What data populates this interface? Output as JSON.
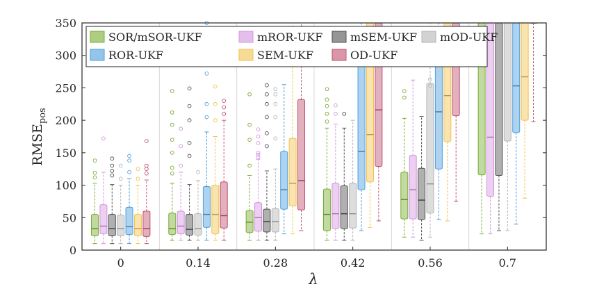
{
  "chart_data": {
    "type": "boxplot",
    "title": "",
    "xlabel": "λ",
    "ylabel": "RMSE",
    "ylabel_subscript": "pos",
    "ylim": [
      0,
      350
    ],
    "yticks": [
      "0",
      "50",
      "100",
      "150",
      "200",
      "250",
      "300",
      "350"
    ],
    "categories": [
      "0",
      "0.14",
      "0.28",
      "0.42",
      "0.56",
      "0.7"
    ],
    "legend_position": "top-left",
    "series": [
      {
        "name": "SOR/mSOR-UKF",
        "color": "#77ac30",
        "boxes": [
          {
            "whisker_low": 10,
            "q1": 22,
            "median": 33,
            "q3": 55,
            "whisker_high": 103,
            "outliers": [
              112,
              119,
              138
            ]
          },
          {
            "whisker_low": 15,
            "q1": 24,
            "median": 33,
            "q3": 57,
            "whisker_high": 103,
            "outliers": [
              118,
              127,
              150,
              170,
              193,
              212,
              245
            ]
          },
          {
            "whisker_low": 15,
            "q1": 27,
            "median": 43,
            "q3": 61,
            "whisker_high": 115,
            "outliers": [
              130,
              170,
              193,
              240
            ]
          },
          {
            "whisker_low": 15,
            "q1": 30,
            "median": 55,
            "q3": 94,
            "whisker_high": 188,
            "outliers": [
              198,
              210,
              222,
              232,
              248
            ]
          },
          {
            "whisker_low": 20,
            "q1": 48,
            "median": 78,
            "q3": 120,
            "whisker_high": 203,
            "outliers": [
              235,
              245
            ]
          },
          {
            "whisker_low": 25,
            "q1": 116,
            "median": 350,
            "q3": 350,
            "whisker_high": 350,
            "outliers": []
          }
        ]
      },
      {
        "name": "mROR-UKF",
        "color": "#d494e0",
        "boxes": [
          {
            "whisker_low": 10,
            "q1": 25,
            "median": 37,
            "q3": 70,
            "whisker_high": 120,
            "outliers": [
              172
            ]
          },
          {
            "whisker_low": 15,
            "q1": 25,
            "median": 37,
            "q3": 60,
            "whisker_high": 120,
            "outliers": [
              130,
              160,
              187
            ]
          },
          {
            "whisker_low": 15,
            "q1": 29,
            "median": 50,
            "q3": 73,
            "whisker_high": 140,
            "outliers": [
              143,
              147,
              150,
              165,
              175,
              186
            ]
          },
          {
            "whisker_low": 15,
            "q1": 33,
            "median": 56,
            "q3": 103,
            "whisker_high": 194,
            "outliers": [
              210,
              223
            ]
          },
          {
            "whisker_low": 20,
            "q1": 48,
            "median": 93,
            "q3": 146,
            "whisker_high": 262,
            "outliers": []
          },
          {
            "whisker_low": 25,
            "q1": 83,
            "median": 174,
            "q3": 350,
            "whisker_high": 350,
            "outliers": []
          }
        ]
      },
      {
        "name": "mSEM-UKF",
        "color": "#505050",
        "boxes": [
          {
            "whisker_low": 10,
            "q1": 22,
            "median": 33,
            "q3": 55,
            "whisker_high": 101,
            "outliers": [
              115,
              122,
              130,
              141
            ]
          },
          {
            "whisker_low": 15,
            "q1": 23,
            "median": 32,
            "q3": 55,
            "whisker_high": 101,
            "outliers": [
              145,
              165,
              200,
              222,
              249
            ]
          },
          {
            "whisker_low": 15,
            "q1": 28,
            "median": 44,
            "q3": 63,
            "whisker_high": 122,
            "outliers": [
              160,
              180,
              205,
              225,
              240,
              254
            ]
          },
          {
            "whisker_low": 15,
            "q1": 33,
            "median": 56,
            "q3": 99,
            "whisker_high": 188,
            "outliers": [
              210
            ]
          },
          {
            "whisker_low": 15,
            "q1": 47,
            "median": 77,
            "q3": 126,
            "whisker_high": 206,
            "outliers": []
          },
          {
            "whisker_low": 30,
            "q1": 115,
            "median": 350,
            "q3": 350,
            "whisker_high": 350,
            "outliers": []
          }
        ]
      },
      {
        "name": "mOD-UKF",
        "color": "#b4b4b4",
        "boxes": [
          {
            "whisker_low": 10,
            "q1": 22,
            "median": 33,
            "q3": 54,
            "whisker_high": 100,
            "outliers": [
              110,
              130
            ]
          },
          {
            "whisker_low": 15,
            "q1": 23,
            "median": 33,
            "q3": 56,
            "whisker_high": 107,
            "outliers": [
              120
            ]
          },
          {
            "whisker_low": 15,
            "q1": 28,
            "median": 44,
            "q3": 64,
            "whisker_high": 125,
            "outliers": [
              172,
              205,
              225,
              240,
              248
            ]
          },
          {
            "whisker_low": 15,
            "q1": 34,
            "median": 56,
            "q3": 103,
            "whisker_high": 200,
            "outliers": []
          },
          {
            "whisker_low": 20,
            "q1": 57,
            "median": 102,
            "q3": 257,
            "whisker_high": 350,
            "outliers": [
              253,
              263
            ]
          },
          {
            "whisker_low": 30,
            "q1": 168,
            "median": 350,
            "q3": 350,
            "whisker_high": 350,
            "outliers": []
          }
        ]
      },
      {
        "name": "ROR-UKF",
        "color": "#4b9ede",
        "boxes": [
          {
            "whisker_low": 10,
            "q1": 24,
            "median": 36,
            "q3": 66,
            "whisker_high": 110,
            "outliers": [
              120,
              138,
              145
            ]
          },
          {
            "whisker_low": 15,
            "q1": 35,
            "median": 55,
            "q3": 98,
            "whisker_high": 182,
            "outliers": [
              205,
              225,
              272,
              350
            ]
          },
          {
            "whisker_low": 25,
            "q1": 63,
            "median": 93,
            "q3": 152,
            "whisker_high": 255,
            "outliers": []
          },
          {
            "whisker_low": 30,
            "q1": 93,
            "median": 152,
            "q3": 294,
            "whisker_high": 350,
            "outliers": []
          },
          {
            "whisker_low": 47,
            "q1": 125,
            "median": 213,
            "q3": 294,
            "whisker_high": 350,
            "outliers": []
          },
          {
            "whisker_low": 40,
            "q1": 181,
            "median": 253,
            "q3": 350,
            "whisker_high": 350,
            "outliers": []
          }
        ]
      },
      {
        "name": "SEM-UKF",
        "color": "#f2c14e",
        "boxes": [
          {
            "whisker_low": 10,
            "q1": 22,
            "median": 33,
            "q3": 55,
            "whisker_high": 100,
            "outliers": [
              110,
              125
            ]
          },
          {
            "whisker_low": 15,
            "q1": 25,
            "median": 55,
            "q3": 100,
            "whisker_high": 175,
            "outliers": [
              200,
              225,
              252
            ]
          },
          {
            "whisker_low": 25,
            "q1": 68,
            "median": 103,
            "q3": 172,
            "whisker_high": 350,
            "outliers": []
          },
          {
            "whisker_low": 35,
            "q1": 105,
            "median": 178,
            "q3": 350,
            "whisker_high": 350,
            "outliers": []
          },
          {
            "whisker_low": 45,
            "q1": 167,
            "median": 238,
            "q3": 350,
            "whisker_high": 350,
            "outliers": []
          },
          {
            "whisker_low": 80,
            "q1": 200,
            "median": 267,
            "q3": 350,
            "whisker_high": 350,
            "outliers": []
          }
        ]
      },
      {
        "name": "OD-UKF",
        "color": "#c0506e",
        "boxes": [
          {
            "whisker_low": 10,
            "q1": 21,
            "median": 33,
            "q3": 60,
            "whisker_high": 108,
            "outliers": [
              118,
              125,
              130,
              168
            ]
          },
          {
            "whisker_low": 15,
            "q1": 34,
            "median": 53,
            "q3": 105,
            "whisker_high": 200,
            "outliers": [
              210,
              220,
              230,
              285
            ]
          },
          {
            "whisker_low": 30,
            "q1": 62,
            "median": 107,
            "q3": 232,
            "whisker_high": 350,
            "outliers": []
          },
          {
            "whisker_low": 45,
            "q1": 129,
            "median": 216,
            "q3": 350,
            "whisker_high": 350,
            "outliers": []
          },
          {
            "whisker_low": 75,
            "q1": 207,
            "median": 350,
            "q3": 350,
            "whisker_high": 350,
            "outliers": []
          },
          {
            "whisker_low": 198,
            "q1": 350,
            "median": 350,
            "q3": 350,
            "whisker_high": 350,
            "outliers": []
          }
        ]
      }
    ]
  }
}
